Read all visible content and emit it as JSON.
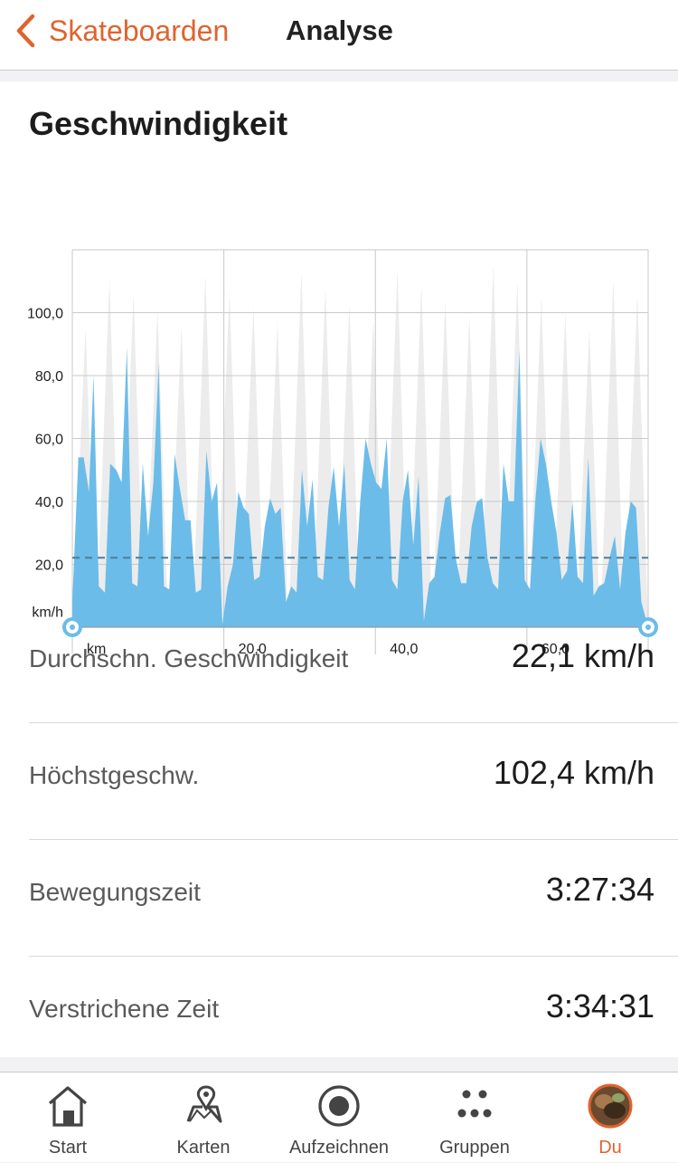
{
  "navbar": {
    "back_label": "Skateboarden",
    "title": "Analyse"
  },
  "chart_title": "Geschwindigkeit",
  "chart_data": {
    "type": "area",
    "title": "Geschwindigkeit",
    "xlabel": "km",
    "ylabel": "km/h",
    "x_ticks": [
      "20,0",
      "40,0",
      "60,0"
    ],
    "y_ticks": [
      "20,0",
      "40,0",
      "60,0",
      "80,0",
      "100,0"
    ],
    "xlim": [
      0,
      76
    ],
    "ylim": [
      0,
      120
    ],
    "average_line": 22.1,
    "series": [
      {
        "x": [
          0,
          0.8,
          1.5,
          2.2,
          2.8,
          3.5,
          4.3,
          5,
          5.8,
          6.5,
          7.2,
          7.9,
          8.6,
          9.3,
          10,
          10.7,
          11.4,
          12.1,
          12.8,
          13.5,
          14.2,
          14.9,
          15.6,
          16.3,
          17,
          17.7,
          18.4,
          19.1,
          19.8,
          20.5,
          21.2,
          21.9,
          22.6,
          23.3,
          24,
          24.7,
          25.4,
          26.1,
          26.8,
          27.5,
          28.2,
          28.9,
          29.6,
          30.3,
          31,
          31.7,
          32.4,
          33.1,
          33.8,
          34.5,
          35.2,
          35.9,
          36.6,
          37.3,
          38,
          38.7,
          39.4,
          40.1,
          40.8,
          41.5,
          42.2,
          42.9,
          43.6,
          44.3,
          45,
          45.7,
          46.4,
          47.1,
          47.8,
          48.5,
          49.2,
          49.9,
          50.6,
          51.3,
          52,
          52.7,
          53.4,
          54.1,
          54.8,
          55.5,
          56.2,
          56.9,
          57.6,
          58.3,
          59,
          59.7,
          60.4,
          61.1,
          61.8,
          62.5,
          63.2,
          63.9,
          64.6,
          65.3,
          66,
          66.7,
          67.4,
          68.1,
          68.8,
          69.5,
          70.2,
          70.9,
          71.6,
          72.3,
          73,
          73.7,
          74.4,
          75.1,
          76
        ],
        "values": [
          8,
          54,
          54,
          43,
          80,
          13,
          11,
          52,
          50,
          46,
          89,
          14,
          13,
          52,
          29,
          46,
          84,
          13,
          12,
          55,
          44,
          34,
          34,
          11,
          12,
          56,
          40,
          46,
          1,
          13,
          20,
          43,
          38,
          36,
          15,
          16,
          32,
          41,
          36,
          38,
          8,
          13,
          11,
          50,
          32,
          47,
          16,
          15,
          38,
          51,
          32,
          52,
          15,
          12,
          40,
          60,
          52,
          46,
          44,
          60,
          15,
          12,
          40,
          50,
          26,
          48,
          2,
          14,
          16,
          30,
          41,
          42,
          22,
          14,
          14,
          32,
          40,
          41,
          22,
          14,
          12,
          52,
          40,
          40,
          88,
          15,
          12,
          40,
          60,
          52,
          40,
          30,
          15,
          18,
          40,
          16,
          14,
          54,
          10,
          13,
          14,
          22,
          29,
          12,
          30,
          40,
          38,
          8,
          0
        ]
      }
    ],
    "elevation_background": true
  },
  "stats": [
    {
      "label": "Durchschn. Geschwindigkeit",
      "value": "22,1 km/h"
    },
    {
      "label": "Höchstgeschw.",
      "value": "102,4 km/h"
    },
    {
      "label": "Bewegungszeit",
      "value": "3:27:34"
    },
    {
      "label": "Verstrichene Zeit",
      "value": "3:34:31"
    }
  ],
  "tabs": [
    {
      "label": "Start",
      "icon": "home-icon"
    },
    {
      "label": "Karten",
      "icon": "map-icon"
    },
    {
      "label": "Aufzeichnen",
      "icon": "record-icon"
    },
    {
      "label": "Gruppen",
      "icon": "groups-icon"
    },
    {
      "label": "Du",
      "icon": "avatar-icon",
      "active": true
    }
  ],
  "colors": {
    "accent": "#e0632d",
    "area": "#6bbce9",
    "elevation": "#ececec",
    "grid": "#c9c9c9",
    "average_line": "#4a7f99"
  }
}
